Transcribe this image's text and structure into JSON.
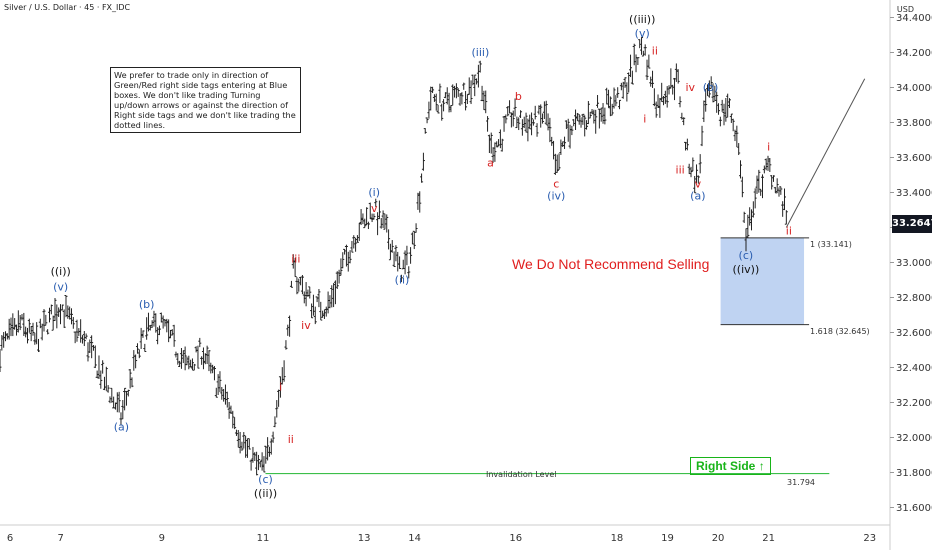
{
  "header": {
    "title": "Silver / U.S. Dollar · 45 · FX_IDC",
    "currency": "USD"
  },
  "note_text": "We prefer to trade only in direction of Green/Red right side tags entering at Blue boxes. We don't like trading Turning up/down arrows or against the direction of Right side tags and we don't like trading the dotted lines.",
  "advice_text": "We Do Not Recommend Selling",
  "right_side_label": "Right Side",
  "right_side_arrow": "↑",
  "invalidation": {
    "label": "Invalidation Level",
    "value_label": "31.794",
    "value": 31.794
  },
  "fib_levels": [
    {
      "label": "1 (33.141)",
      "value": 33.141
    },
    {
      "label": "1.618 (32.645)",
      "value": 32.645
    }
  ],
  "last_price_label": "33.2647",
  "colors": {
    "wave_black": "#111111",
    "wave_blue": "#2a5db0",
    "wave_red": "#d62020",
    "box": "#a9c4ee",
    "invalidation": "#3cbf4a",
    "bars": "#222222"
  },
  "chart_data": {
    "type": "line",
    "title": "",
    "xlabel": "",
    "ylabel": "",
    "ylim": [
      31.5,
      34.5
    ],
    "y_ticks": [
      31.6,
      31.8,
      32.0,
      32.2,
      32.4,
      32.6,
      32.8,
      33.0,
      33.2,
      33.4,
      33.6,
      33.8,
      34.0,
      34.2,
      34.4
    ],
    "y_tick_labels": [
      "31.6000",
      "31.8000",
      "32.0000",
      "32.2000",
      "32.4000",
      "32.6000",
      "32.8000",
      "33.0000",
      "33.2000",
      "33.4000",
      "33.6000",
      "33.8000",
      "34.0000",
      "34.2000",
      "34.4000"
    ],
    "x_ticks": [
      6,
      7,
      9,
      11,
      13,
      14,
      16,
      18,
      19,
      20,
      21,
      23
    ],
    "x_tick_labels": [
      "6",
      "7",
      "9",
      "11",
      "13",
      "14",
      "16",
      "18",
      "19",
      "20",
      "21",
      "23"
    ],
    "x_tick_pos": [
      6,
      7,
      9,
      11,
      13,
      14,
      16,
      18,
      19,
      20,
      21,
      23
    ],
    "xlim": [
      5.8,
      23.4
    ],
    "grid": false,
    "legend": "none",
    "series": [
      {
        "x": [
          5.8,
          6.2,
          6.5,
          6.8,
          7.0,
          7.3,
          7.5,
          7.9,
          8.2,
          8.5,
          8.7,
          9.0,
          9.3,
          9.5,
          9.8,
          10.0,
          10.3,
          10.5,
          10.7,
          10.9,
          11.0,
          11.05,
          11.2,
          11.35,
          11.5,
          11.6,
          11.8,
          12.0,
          12.3,
          12.6,
          12.9,
          13.2,
          13.4,
          13.55,
          13.7,
          13.9,
          14.1,
          14.3,
          14.6,
          14.8,
          15.1,
          15.3,
          15.5,
          15.7,
          15.9,
          16.1,
          16.4,
          16.6,
          16.8,
          17.0,
          17.3,
          17.5,
          17.8,
          18.1,
          18.3,
          18.5,
          18.6,
          18.8,
          19.0,
          19.2,
          19.4,
          19.6,
          19.75,
          19.9,
          20.05,
          20.2,
          20.35,
          20.45,
          20.55,
          20.7,
          20.85,
          21.0,
          21.15,
          21.35
        ],
        "y": [
          32.5,
          32.65,
          32.55,
          32.68,
          32.76,
          32.6,
          32.55,
          32.3,
          32.12,
          32.45,
          32.6,
          32.65,
          32.5,
          32.4,
          32.5,
          32.35,
          32.2,
          32.05,
          31.92,
          31.83,
          31.82,
          31.85,
          32.05,
          32.3,
          32.6,
          32.95,
          32.85,
          32.75,
          32.75,
          33.0,
          33.2,
          33.3,
          33.2,
          33.1,
          32.95,
          33.0,
          33.4,
          33.95,
          33.9,
          33.95,
          34.0,
          34.1,
          33.65,
          33.7,
          33.85,
          33.8,
          33.8,
          33.85,
          33.5,
          33.75,
          33.8,
          33.85,
          33.9,
          33.95,
          34.1,
          34.25,
          34.15,
          33.9,
          34.0,
          34.05,
          33.6,
          33.45,
          33.9,
          34.0,
          33.85,
          33.9,
          33.75,
          33.55,
          33.1,
          33.35,
          33.45,
          33.55,
          33.45,
          33.27
        ]
      }
    ],
    "annotations": [
      {
        "label": "((i))",
        "x": 7.0,
        "y": 32.93,
        "color": "black"
      },
      {
        "label": "(v)",
        "x": 7.0,
        "y": 32.84,
        "color": "blue"
      },
      {
        "label": "(a)",
        "x": 8.2,
        "y": 32.04,
        "color": "blue"
      },
      {
        "label": "(b)",
        "x": 8.7,
        "y": 32.74,
        "color": "blue"
      },
      {
        "label": "i",
        "x": 11.35,
        "y": 32.27,
        "color": "red"
      },
      {
        "label": "ii",
        "x": 11.55,
        "y": 31.97,
        "color": "red"
      },
      {
        "label": "(c)",
        "x": 11.05,
        "y": 31.74,
        "color": "blue"
      },
      {
        "label": "((ii))",
        "x": 11.05,
        "y": 31.66,
        "color": "black"
      },
      {
        "label": "iii",
        "x": 11.65,
        "y": 33.0,
        "color": "red"
      },
      {
        "label": "iv",
        "x": 11.85,
        "y": 32.62,
        "color": "red"
      },
      {
        "label": "(i)",
        "x": 13.2,
        "y": 33.38,
        "color": "blue"
      },
      {
        "label": "v",
        "x": 13.2,
        "y": 33.29,
        "color": "red"
      },
      {
        "label": "(ii)",
        "x": 13.75,
        "y": 32.88,
        "color": "blue"
      },
      {
        "label": "(iii)",
        "x": 15.3,
        "y": 34.18,
        "color": "blue"
      },
      {
        "label": "a",
        "x": 15.5,
        "y": 33.55,
        "color": "red"
      },
      {
        "label": "b",
        "x": 16.05,
        "y": 33.93,
        "color": "red"
      },
      {
        "label": "c",
        "x": 16.8,
        "y": 33.43,
        "color": "red"
      },
      {
        "label": "(iv)",
        "x": 16.8,
        "y": 33.36,
        "color": "blue"
      },
      {
        "label": "((iii))",
        "x": 18.5,
        "y": 34.37,
        "color": "black"
      },
      {
        "label": "(v)",
        "x": 18.5,
        "y": 34.29,
        "color": "blue"
      },
      {
        "label": "ii",
        "x": 18.75,
        "y": 34.19,
        "color": "red"
      },
      {
        "label": "i",
        "x": 18.55,
        "y": 33.8,
        "color": "red"
      },
      {
        "label": "iv",
        "x": 19.45,
        "y": 33.98,
        "color": "red"
      },
      {
        "label": "(b)",
        "x": 19.85,
        "y": 33.98,
        "color": "blue"
      },
      {
        "label": "iii",
        "x": 19.25,
        "y": 33.51,
        "color": "red"
      },
      {
        "label": "v",
        "x": 19.6,
        "y": 33.43,
        "color": "red"
      },
      {
        "label": "(a)",
        "x": 19.6,
        "y": 33.36,
        "color": "blue"
      },
      {
        "label": "i",
        "x": 21.0,
        "y": 33.64,
        "color": "red"
      },
      {
        "label": "(c)",
        "x": 20.55,
        "y": 33.02,
        "color": "blue"
      },
      {
        "label": "((iv))",
        "x": 20.55,
        "y": 32.94,
        "color": "black"
      },
      {
        "label": "ii",
        "x": 21.4,
        "y": 33.16,
        "color": "red"
      }
    ]
  }
}
